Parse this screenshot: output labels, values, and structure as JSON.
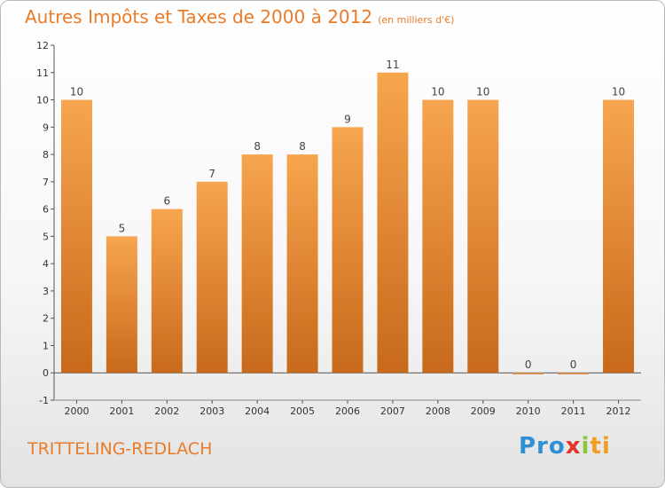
{
  "header": {
    "title": "Autres Impôts et Taxes de 2000 à 2012",
    "unit": "(en milliers d'€)"
  },
  "footer": {
    "city": "TRITTELING-REDLACH",
    "logo": [
      "Pro",
      "x",
      "i",
      "ti"
    ]
  },
  "colors": {
    "accent": "#e87c2a",
    "bar_light": "#f7a54f",
    "bar_dark": "#c8691b",
    "axis": "#555555"
  },
  "chart_data": {
    "type": "bar",
    "title": "Autres Impôts et Taxes de 2000 à 2012",
    "subtitle": "(en milliers d'€)",
    "categories": [
      "2000",
      "2001",
      "2002",
      "2003",
      "2004",
      "2005",
      "2006",
      "2007",
      "2008",
      "2009",
      "2010",
      "2011",
      "2012"
    ],
    "values": [
      10,
      5,
      6,
      7,
      8,
      8,
      9,
      11,
      10,
      10,
      0,
      0,
      10
    ],
    "data_labels": [
      "10",
      "5",
      "6",
      "7",
      "8",
      "8",
      "9",
      "11",
      "10",
      "10",
      "0",
      "0",
      "10"
    ],
    "y_ticks": [
      "-1",
      "0",
      "1",
      "2",
      "3",
      "4",
      "5",
      "6",
      "7",
      "8",
      "9",
      "10",
      "11",
      "12"
    ],
    "ylim": [
      -1,
      12
    ],
    "xlabel": "",
    "ylabel": "",
    "grid": false,
    "legend": "none"
  }
}
